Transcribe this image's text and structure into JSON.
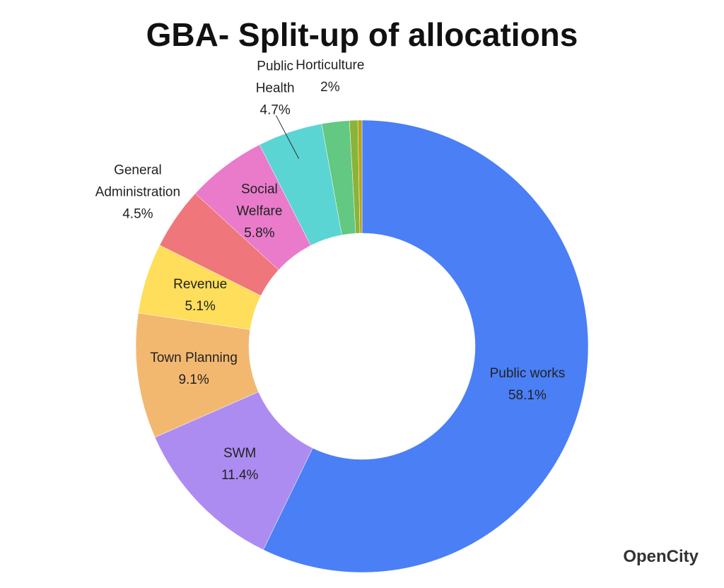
{
  "chart_data": {
    "type": "donut",
    "title": "GBA- Split-up of allocations",
    "categories": [
      "Public works",
      "SWM",
      "Town Planning",
      "Revenue",
      "General Administration",
      "Social Welfare",
      "Public Health",
      "Horticulture",
      null,
      null
    ],
    "values": [
      58.1,
      11.4,
      9.1,
      5.1,
      4.5,
      5.8,
      4.7,
      2,
      0.6,
      0.3
    ],
    "value_labels": [
      "58.1%",
      "11.4%",
      "9.1%",
      "5.1%",
      "4.5%",
      "5.8%",
      "4.7%",
      "2%",
      null,
      null
    ],
    "colors": [
      "#4a7ff5",
      "#ad8cf2",
      "#f3b870",
      "#fede5a",
      "#ef767a",
      "#e97bca",
      "#5bd4d4",
      "#62c882",
      "#8bb33a",
      "#b5a21a"
    ]
  },
  "logo": "OpenCity"
}
